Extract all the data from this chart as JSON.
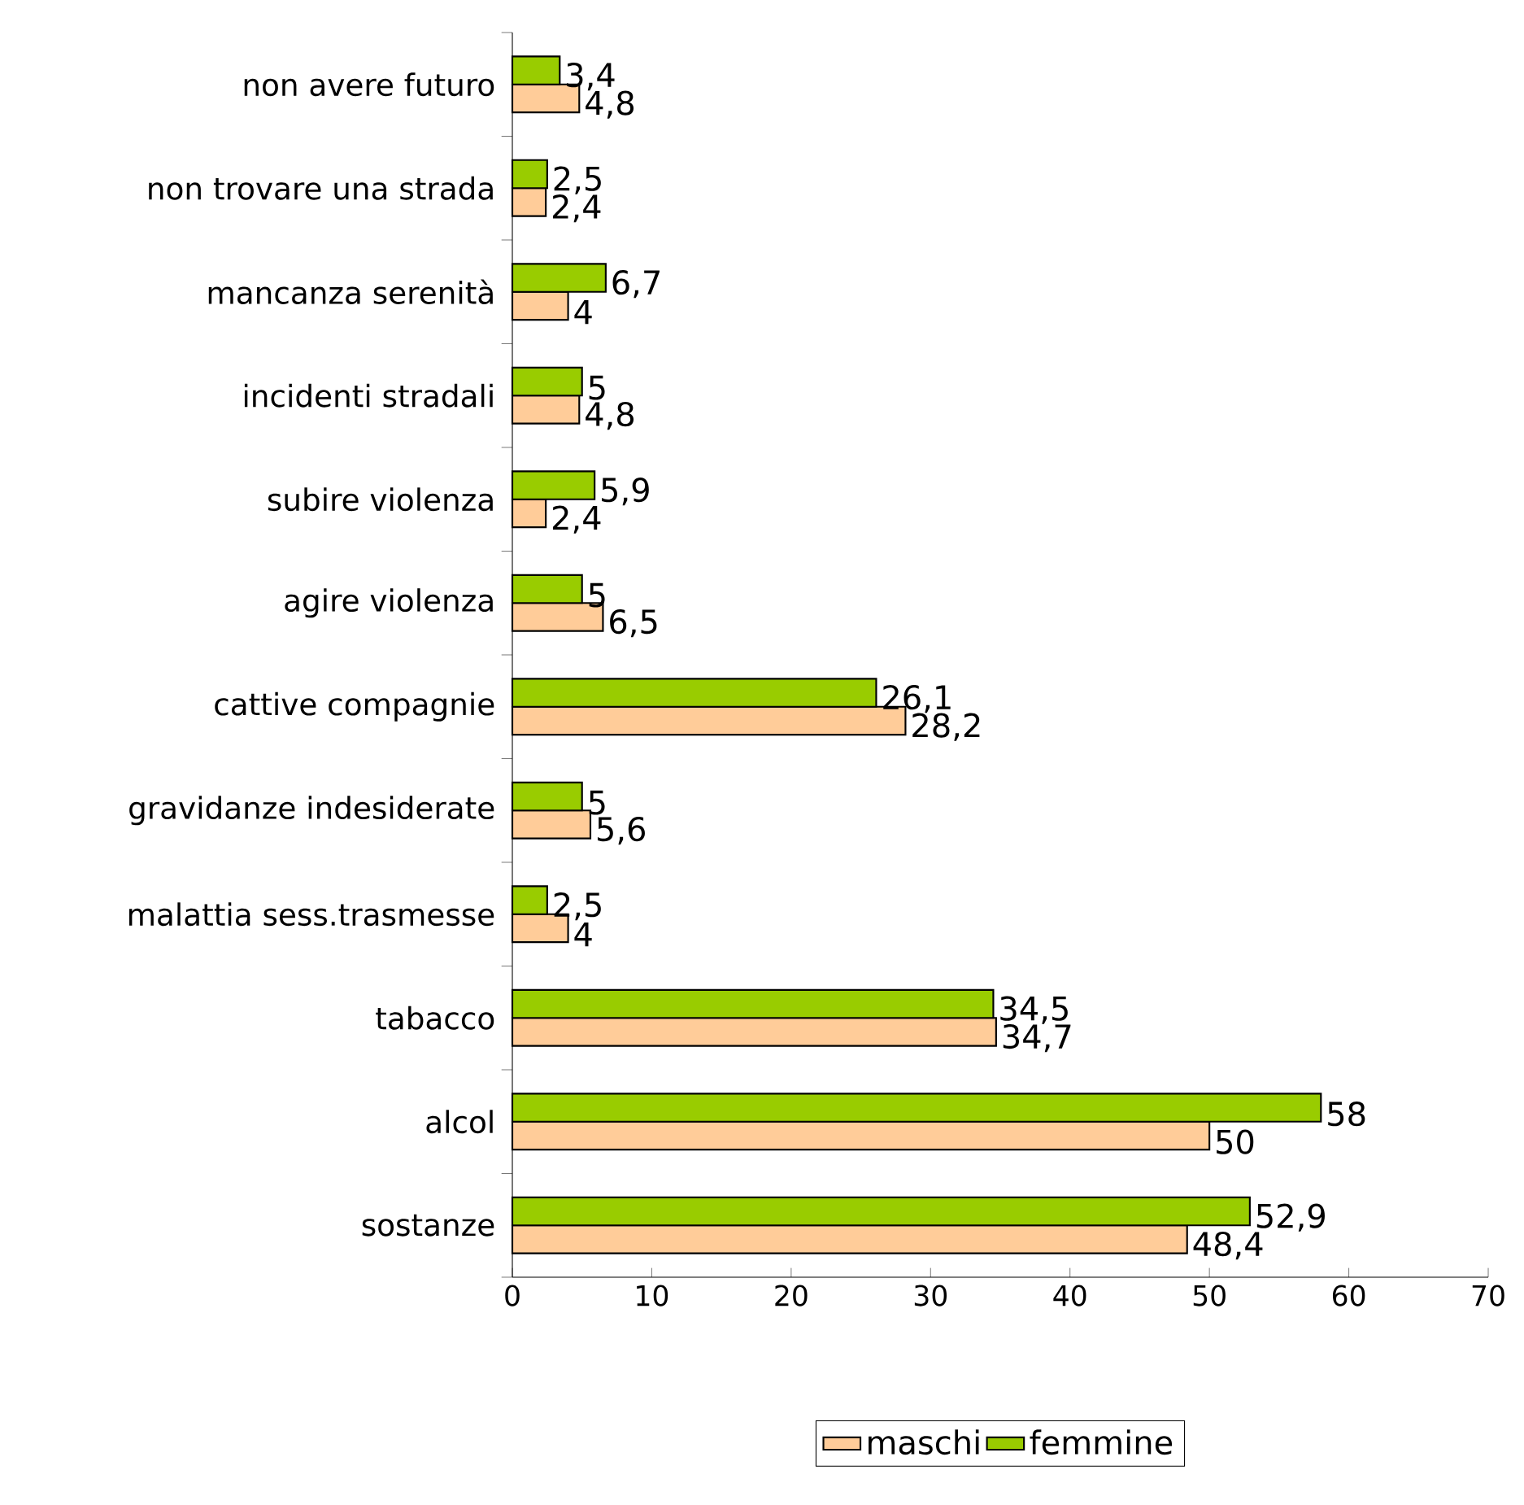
{
  "chart_data": {
    "type": "bar",
    "orientation": "horizontal",
    "categories": [
      "non avere futuro",
      "non trovare una strada",
      "mancanza serenità",
      "incidenti stradali",
      "subire violenza",
      "agire violenza",
      "cattive compagnie",
      "gravidanze indesiderate",
      "malattia sess.trasmesse",
      "tabacco",
      "alcol",
      "sostanze"
    ],
    "series": [
      {
        "name": "maschi",
        "color": "#ffcc99",
        "values": [
          4.8,
          2.4,
          4,
          4.8,
          2.4,
          6.5,
          28.2,
          5.6,
          4,
          34.7,
          50,
          48.4
        ],
        "value_labels": [
          "4,8",
          "2,4",
          "4",
          "4,8",
          "2,4",
          "6,5",
          "28,2",
          "5,6",
          "4",
          "34,7",
          "50",
          "48,4"
        ]
      },
      {
        "name": "femmine",
        "color": "#99cc00",
        "values": [
          3.4,
          2.5,
          6.7,
          5,
          5.9,
          5,
          26.1,
          5,
          2.5,
          34.5,
          58,
          52.9
        ],
        "value_labels": [
          "3,4",
          "2,5",
          "6,7",
          "5",
          "5,9",
          "5",
          "26,1",
          "5",
          "2,5",
          "34,5",
          "58",
          "52,9"
        ]
      }
    ],
    "xlim": [
      0,
      70
    ],
    "xticks": [
      0,
      10,
      20,
      30,
      40,
      50,
      60,
      70
    ],
    "legend": "bottom"
  }
}
